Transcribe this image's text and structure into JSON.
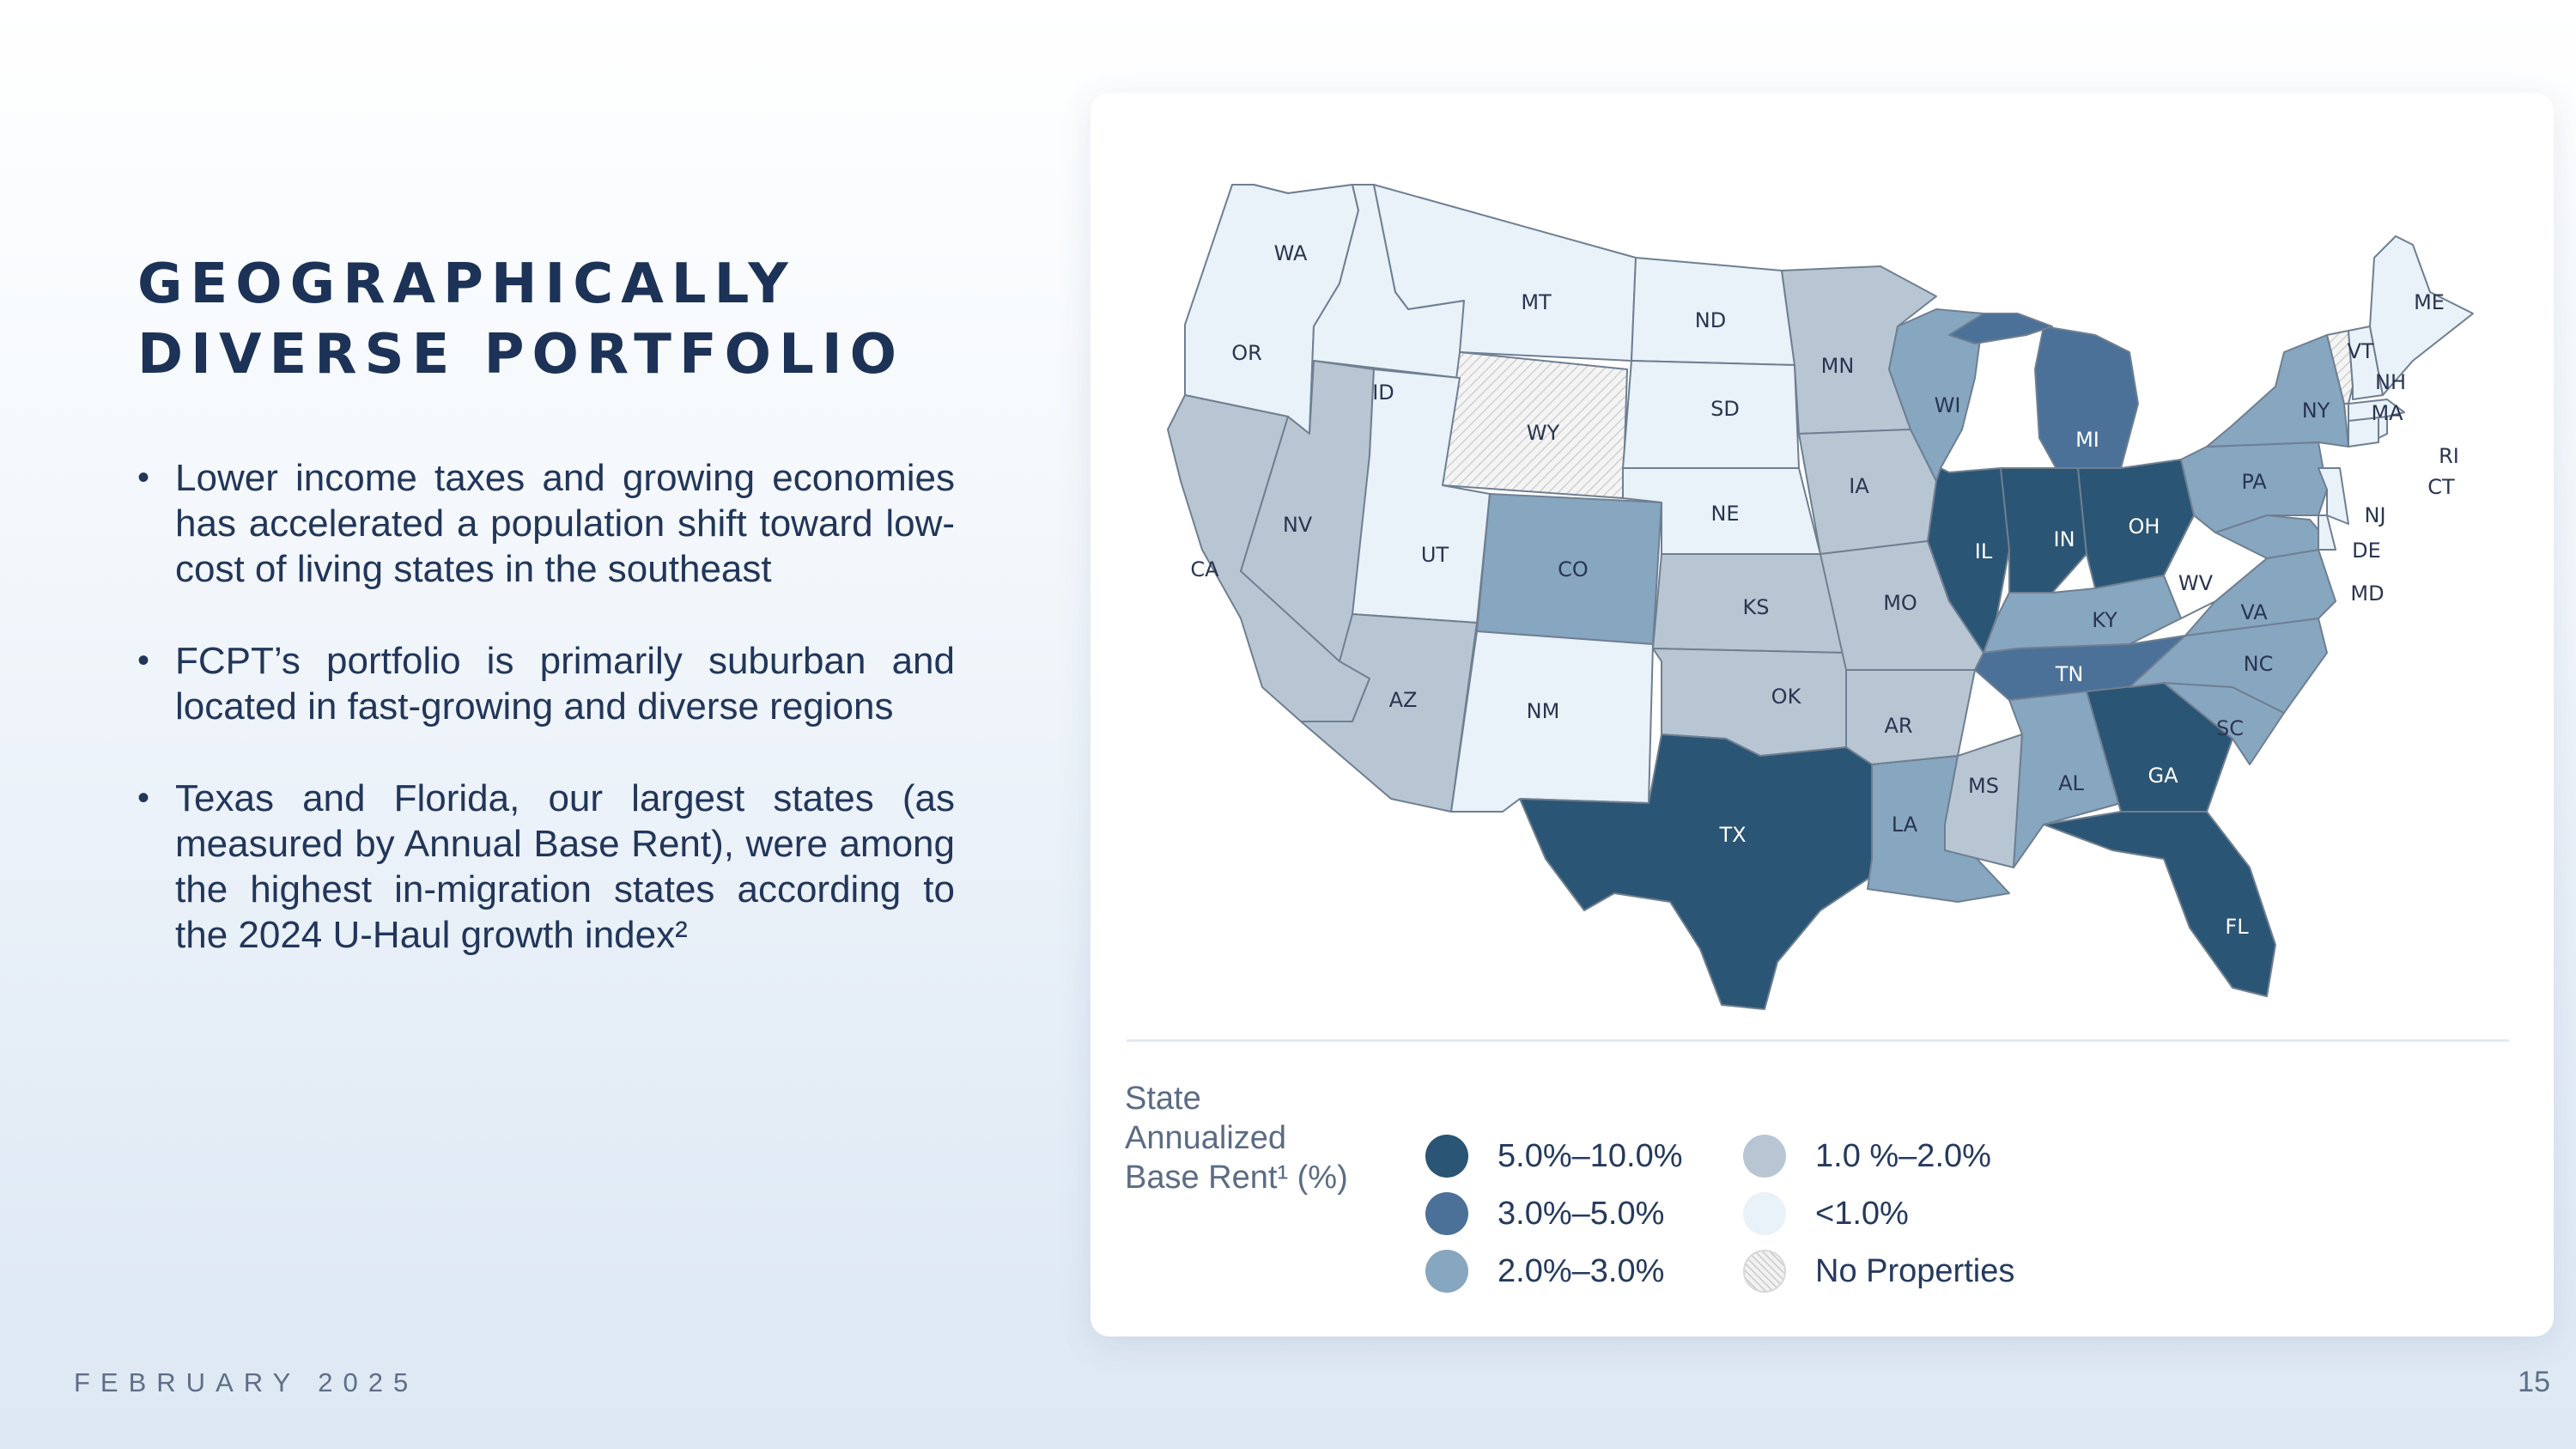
{
  "title": {
    "line1": "GEOGRAPHICALLY",
    "line2": "DIVERSE PORTFOLIO"
  },
  "bullets": [
    "Lower income taxes and growing economies has accelerated a population shift toward low-cost of living states in the southeast",
    "FCPT’s portfolio is primarily suburban and located in fast-growing and diverse regions",
    "Texas and Florida, our largest states (as measured by Annual Base Rent), were among the highest in-migration states according to the 2024 U-Haul growth index²"
  ],
  "footer": {
    "date": "FEBRUARY 2025",
    "page": "15"
  },
  "legend": {
    "title_lines": [
      "State",
      "Annualized",
      "Base Rent¹ (%)"
    ],
    "items": [
      {
        "label": "5.0%–10.0%",
        "color": "#2b5574"
      },
      {
        "label": "3.0%–5.0%",
        "color": "#4b7198"
      },
      {
        "label": "2.0%–3.0%",
        "color": "#87a6c0"
      },
      {
        "label": "1.0 %–2.0%",
        "color": "#b8c6d3"
      },
      {
        "label": "<1.0%",
        "color": "#e9f1f9"
      },
      {
        "label": "No Properties",
        "color": "hatch"
      }
    ]
  },
  "map": {
    "states": [
      {
        "code": "WA",
        "tier": "lt1"
      },
      {
        "code": "OR",
        "tier": "lt1"
      },
      {
        "code": "CA",
        "tier": "t1_2"
      },
      {
        "code": "ID",
        "tier": "lt1"
      },
      {
        "code": "NV",
        "tier": "t1_2"
      },
      {
        "code": "MT",
        "tier": "lt1"
      },
      {
        "code": "WY",
        "tier": "none"
      },
      {
        "code": "UT",
        "tier": "lt1"
      },
      {
        "code": "AZ",
        "tier": "t1_2"
      },
      {
        "code": "CO",
        "tier": "t2_3"
      },
      {
        "code": "NM",
        "tier": "lt1"
      },
      {
        "code": "ND",
        "tier": "lt1"
      },
      {
        "code": "SD",
        "tier": "lt1"
      },
      {
        "code": "NE",
        "tier": "lt1"
      },
      {
        "code": "KS",
        "tier": "t1_2"
      },
      {
        "code": "OK",
        "tier": "t1_2"
      },
      {
        "code": "TX",
        "tier": "t5_10"
      },
      {
        "code": "MN",
        "tier": "t1_2"
      },
      {
        "code": "IA",
        "tier": "t1_2"
      },
      {
        "code": "MO",
        "tier": "t1_2"
      },
      {
        "code": "AR",
        "tier": "t1_2"
      },
      {
        "code": "LA",
        "tier": "t2_3"
      },
      {
        "code": "WI",
        "tier": "t2_3"
      },
      {
        "code": "IL",
        "tier": "t5_10"
      },
      {
        "code": "MI",
        "tier": "t3_5"
      },
      {
        "code": "IN",
        "tier": "t5_10"
      },
      {
        "code": "OH",
        "tier": "t5_10"
      },
      {
        "code": "KY",
        "tier": "t2_3"
      },
      {
        "code": "TN",
        "tier": "t3_5"
      },
      {
        "code": "MS",
        "tier": "t1_2"
      },
      {
        "code": "AL",
        "tier": "t2_3"
      },
      {
        "code": "GA",
        "tier": "t5_10"
      },
      {
        "code": "FL",
        "tier": "t5_10"
      },
      {
        "code": "SC",
        "tier": "t2_3"
      },
      {
        "code": "NC",
        "tier": "t2_3"
      },
      {
        "code": "VA",
        "tier": "t2_3"
      },
      {
        "code": "WV",
        "tier": "white"
      },
      {
        "code": "PA",
        "tier": "t2_3"
      },
      {
        "code": "NY",
        "tier": "t2_3"
      },
      {
        "code": "ME",
        "tier": "lt1"
      },
      {
        "code": "VT",
        "tier": "none"
      },
      {
        "code": "NH",
        "tier": "lt1"
      },
      {
        "code": "MA",
        "tier": "lt1"
      },
      {
        "code": "RI",
        "tier": "lt1"
      },
      {
        "code": "CT",
        "tier": "lt1"
      },
      {
        "code": "NJ",
        "tier": "lt1"
      },
      {
        "code": "DE",
        "tier": "lt1"
      },
      {
        "code": "MD",
        "tier": "t2_3"
      }
    ]
  }
}
